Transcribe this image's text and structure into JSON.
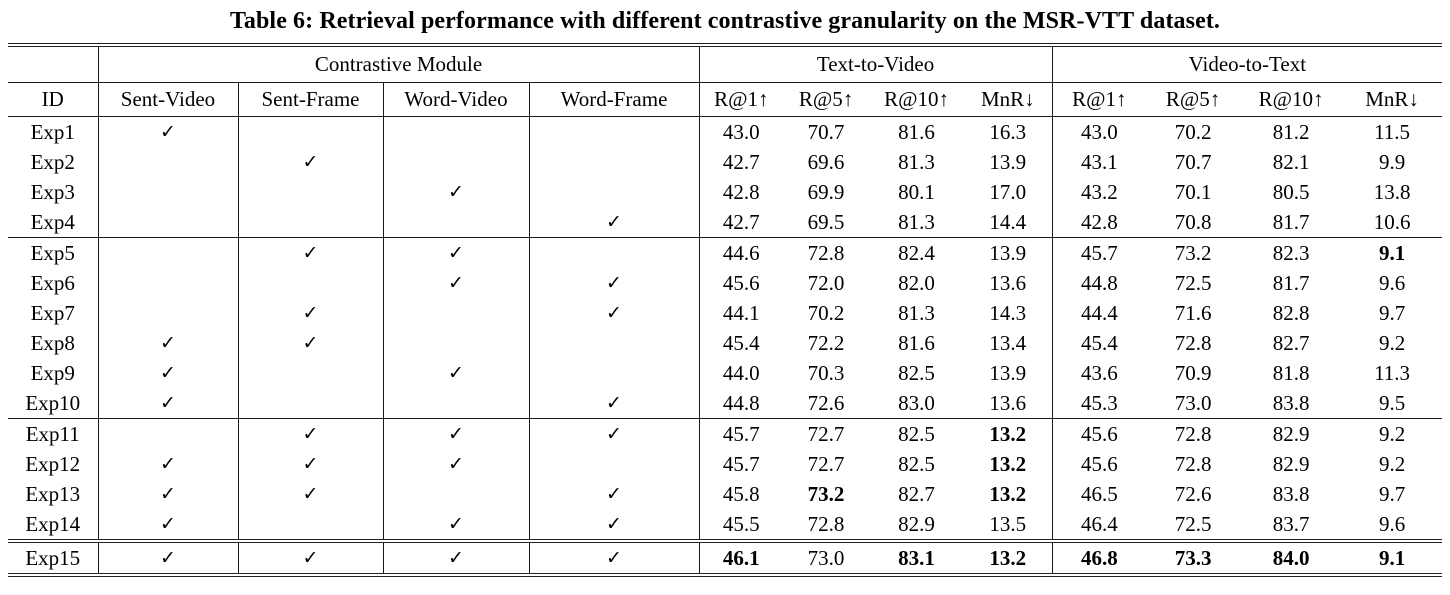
{
  "title": "Table 6: Retrieval performance with different contrastive granularity on the MSR-VTT dataset.",
  "table": {
    "groups": {
      "module": "Contrastive Module",
      "t2v": "Text-to-Video",
      "v2t": "Video-to-Text"
    },
    "id_header": "ID",
    "module_columns": [
      "Sent-Video",
      "Sent-Frame",
      "Word-Video",
      "Word-Frame"
    ],
    "metric_columns": [
      "R@1↑",
      "R@5↑",
      "R@10↑",
      "MnR↓"
    ],
    "check_glyph": "✓",
    "rows": [
      {
        "id": "Exp1",
        "checks": [
          1,
          0,
          0,
          0
        ],
        "t2v": [
          "43.0",
          "70.7",
          "81.6",
          "16.3"
        ],
        "t2v_bold": [
          0,
          0,
          0,
          0
        ],
        "v2t": [
          "43.0",
          "70.2",
          "81.2",
          "11.5"
        ],
        "v2t_bold": [
          0,
          0,
          0,
          0
        ],
        "group_end": false,
        "double_end": false
      },
      {
        "id": "Exp2",
        "checks": [
          0,
          1,
          0,
          0
        ],
        "t2v": [
          "42.7",
          "69.6",
          "81.3",
          "13.9"
        ],
        "t2v_bold": [
          0,
          0,
          0,
          0
        ],
        "v2t": [
          "43.1",
          "70.7",
          "82.1",
          "9.9"
        ],
        "v2t_bold": [
          0,
          0,
          0,
          0
        ],
        "group_end": false,
        "double_end": false
      },
      {
        "id": "Exp3",
        "checks": [
          0,
          0,
          1,
          0
        ],
        "t2v": [
          "42.8",
          "69.9",
          "80.1",
          "17.0"
        ],
        "t2v_bold": [
          0,
          0,
          0,
          0
        ],
        "v2t": [
          "43.2",
          "70.1",
          "80.5",
          "13.8"
        ],
        "v2t_bold": [
          0,
          0,
          0,
          0
        ],
        "group_end": false,
        "double_end": false
      },
      {
        "id": "Exp4",
        "checks": [
          0,
          0,
          0,
          1
        ],
        "t2v": [
          "42.7",
          "69.5",
          "81.3",
          "14.4"
        ],
        "t2v_bold": [
          0,
          0,
          0,
          0
        ],
        "v2t": [
          "42.8",
          "70.8",
          "81.7",
          "10.6"
        ],
        "v2t_bold": [
          0,
          0,
          0,
          0
        ],
        "group_end": true,
        "double_end": false
      },
      {
        "id": "Exp5",
        "checks": [
          0,
          1,
          1,
          0
        ],
        "t2v": [
          "44.6",
          "72.8",
          "82.4",
          "13.9"
        ],
        "t2v_bold": [
          0,
          0,
          0,
          0
        ],
        "v2t": [
          "45.7",
          "73.2",
          "82.3",
          "9.1"
        ],
        "v2t_bold": [
          0,
          0,
          0,
          1
        ],
        "group_end": false,
        "double_end": false
      },
      {
        "id": "Exp6",
        "checks": [
          0,
          0,
          1,
          1
        ],
        "t2v": [
          "45.6",
          "72.0",
          "82.0",
          "13.6"
        ],
        "t2v_bold": [
          0,
          0,
          0,
          0
        ],
        "v2t": [
          "44.8",
          "72.5",
          "81.7",
          "9.6"
        ],
        "v2t_bold": [
          0,
          0,
          0,
          0
        ],
        "group_end": false,
        "double_end": false
      },
      {
        "id": "Exp7",
        "checks": [
          0,
          1,
          0,
          1
        ],
        "t2v": [
          "44.1",
          "70.2",
          "81.3",
          "14.3"
        ],
        "t2v_bold": [
          0,
          0,
          0,
          0
        ],
        "v2t": [
          "44.4",
          "71.6",
          "82.8",
          "9.7"
        ],
        "v2t_bold": [
          0,
          0,
          0,
          0
        ],
        "group_end": false,
        "double_end": false
      },
      {
        "id": "Exp8",
        "checks": [
          1,
          1,
          0,
          0
        ],
        "t2v": [
          "45.4",
          "72.2",
          "81.6",
          "13.4"
        ],
        "t2v_bold": [
          0,
          0,
          0,
          0
        ],
        "v2t": [
          "45.4",
          "72.8",
          "82.7",
          "9.2"
        ],
        "v2t_bold": [
          0,
          0,
          0,
          0
        ],
        "group_end": false,
        "double_end": false
      },
      {
        "id": "Exp9",
        "checks": [
          1,
          0,
          1,
          0
        ],
        "t2v": [
          "44.0",
          "70.3",
          "82.5",
          "13.9"
        ],
        "t2v_bold": [
          0,
          0,
          0,
          0
        ],
        "v2t": [
          "43.6",
          "70.9",
          "81.8",
          "11.3"
        ],
        "v2t_bold": [
          0,
          0,
          0,
          0
        ],
        "group_end": false,
        "double_end": false
      },
      {
        "id": "Exp10",
        "checks": [
          1,
          0,
          0,
          1
        ],
        "t2v": [
          "44.8",
          "72.6",
          "83.0",
          "13.6"
        ],
        "t2v_bold": [
          0,
          0,
          0,
          0
        ],
        "v2t": [
          "45.3",
          "73.0",
          "83.8",
          "9.5"
        ],
        "v2t_bold": [
          0,
          0,
          0,
          0
        ],
        "group_end": true,
        "double_end": false
      },
      {
        "id": "Exp11",
        "checks": [
          0,
          1,
          1,
          1
        ],
        "t2v": [
          "45.7",
          "72.7",
          "82.5",
          "13.2"
        ],
        "t2v_bold": [
          0,
          0,
          0,
          1
        ],
        "v2t": [
          "45.6",
          "72.8",
          "82.9",
          "9.2"
        ],
        "v2t_bold": [
          0,
          0,
          0,
          0
        ],
        "group_end": false,
        "double_end": false
      },
      {
        "id": "Exp12",
        "checks": [
          1,
          1,
          1,
          0
        ],
        "t2v": [
          "45.7",
          "72.7",
          "82.5",
          "13.2"
        ],
        "t2v_bold": [
          0,
          0,
          0,
          1
        ],
        "v2t": [
          "45.6",
          "72.8",
          "82.9",
          "9.2"
        ],
        "v2t_bold": [
          0,
          0,
          0,
          0
        ],
        "group_end": false,
        "double_end": false
      },
      {
        "id": "Exp13",
        "checks": [
          1,
          1,
          0,
          1
        ],
        "t2v": [
          "45.8",
          "73.2",
          "82.7",
          "13.2"
        ],
        "t2v_bold": [
          0,
          1,
          0,
          1
        ],
        "v2t": [
          "46.5",
          "72.6",
          "83.8",
          "9.7"
        ],
        "v2t_bold": [
          0,
          0,
          0,
          0
        ],
        "group_end": false,
        "double_end": false
      },
      {
        "id": "Exp14",
        "checks": [
          1,
          0,
          1,
          1
        ],
        "t2v": [
          "45.5",
          "72.8",
          "82.9",
          "13.5"
        ],
        "t2v_bold": [
          0,
          0,
          0,
          0
        ],
        "v2t": [
          "46.4",
          "72.5",
          "83.7",
          "9.6"
        ],
        "v2t_bold": [
          0,
          0,
          0,
          0
        ],
        "group_end": false,
        "double_end": true
      },
      {
        "id": "Exp15",
        "checks": [
          1,
          1,
          1,
          1
        ],
        "t2v": [
          "46.1",
          "73.0",
          "83.1",
          "13.2"
        ],
        "t2v_bold": [
          1,
          0,
          1,
          1
        ],
        "v2t": [
          "46.8",
          "73.3",
          "84.0",
          "9.1"
        ],
        "v2t_bold": [
          1,
          1,
          1,
          1
        ],
        "group_end": false,
        "double_end": false
      }
    ]
  }
}
